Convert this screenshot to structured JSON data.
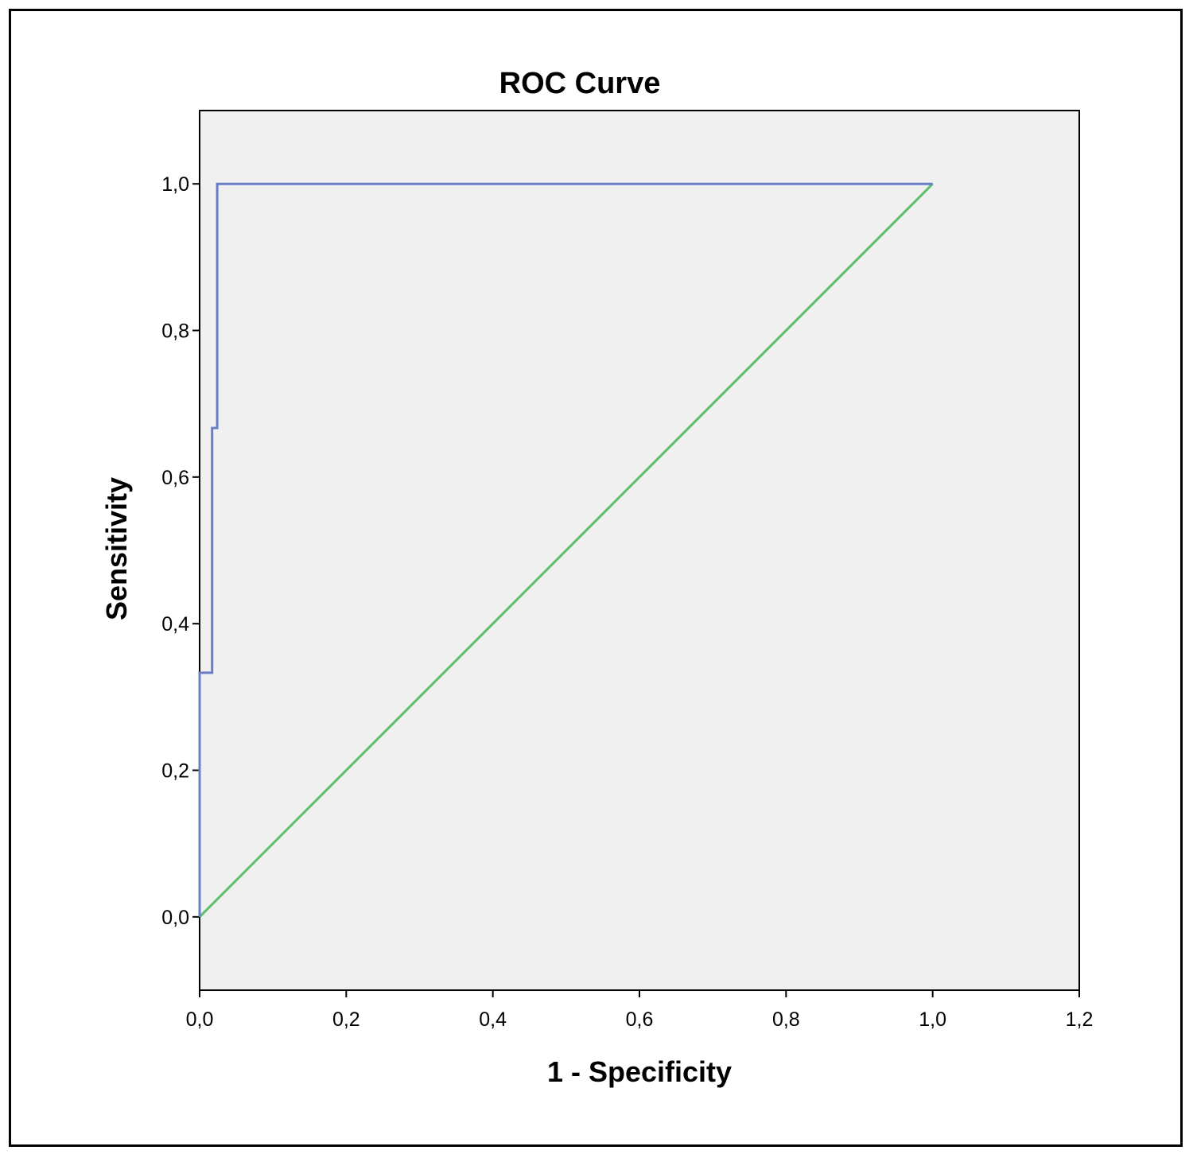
{
  "chart_data": {
    "type": "line",
    "title": "ROC Curve",
    "xlabel": "1 - Specificity",
    "ylabel": "Sensitivity",
    "xlim": [
      0.0,
      1.2
    ],
    "ylim": [
      -0.1,
      1.1
    ],
    "x_ticks": [
      {
        "value": 0.0,
        "label": "0,0"
      },
      {
        "value": 0.2,
        "label": "0,2"
      },
      {
        "value": 0.4,
        "label": "0,4"
      },
      {
        "value": 0.6,
        "label": "0,6"
      },
      {
        "value": 0.8,
        "label": "0,8"
      },
      {
        "value": 1.0,
        "label": "1,0"
      },
      {
        "value": 1.2,
        "label": "1,2"
      }
    ],
    "y_ticks": [
      {
        "value": 0.0,
        "label": "0,0"
      },
      {
        "value": 0.2,
        "label": "0,2"
      },
      {
        "value": 0.4,
        "label": "0,4"
      },
      {
        "value": 0.6,
        "label": "0,6"
      },
      {
        "value": 0.8,
        "label": "0,8"
      },
      {
        "value": 1.0,
        "label": "1,0"
      }
    ],
    "grid": false,
    "plot_background": "#f0f0f0",
    "series": [
      {
        "color": "#6b7fc9",
        "points": [
          [
            0.0,
            0.0
          ],
          [
            0.0,
            0.333
          ],
          [
            0.017,
            0.333
          ],
          [
            0.017,
            0.667
          ],
          [
            0.024,
            0.667
          ],
          [
            0.024,
            1.0
          ],
          [
            1.0,
            1.0
          ]
        ]
      },
      {
        "color": "#5cbf6a",
        "points": [
          [
            0.0,
            0.0
          ],
          [
            1.0,
            1.0
          ]
        ]
      }
    ]
  }
}
